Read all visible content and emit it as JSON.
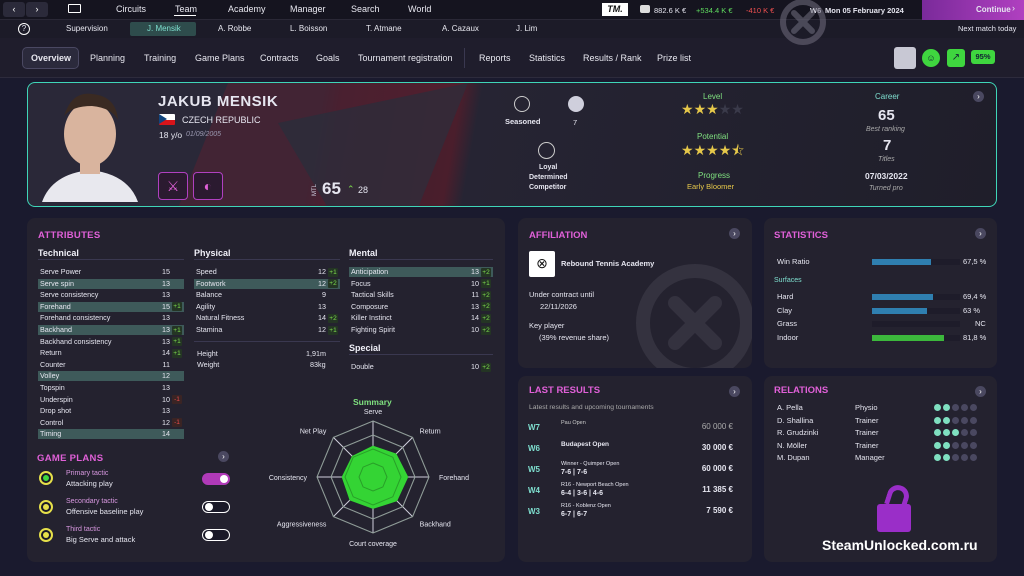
{
  "topbar": {
    "nav": [
      "Circuits",
      "Team",
      "Academy",
      "Manager",
      "Search",
      "World"
    ],
    "logo": "TM.",
    "money": "882.6 K €",
    "money_pos": "+534.4 K €",
    "money_neg": "-410 K €",
    "week": "W6",
    "date": "Mon 05 February 2024",
    "continue_label": "Continue",
    "next_match": "Next match today"
  },
  "subbar": {
    "items": [
      "Supervision",
      "J. Mensik",
      "A. Robbe",
      "L. Boisson",
      "T. Atmane",
      "A. Cazaux",
      "J. Lim"
    ]
  },
  "tabs": [
    "Overview",
    "Planning",
    "Training",
    "Game Plans",
    "Contracts",
    "Goals",
    "Tournament registration",
    "Reports",
    "Statistics",
    "Results / Rank",
    "Prize list"
  ],
  "header": {
    "fitness": "95%"
  },
  "profile": {
    "name": "JAKUB MENSIK",
    "country": "CZECH REPUBLIC",
    "age": "18 y/o",
    "dob": "01/09/2005",
    "mtl_label": "MTL",
    "mtl": "65",
    "mtl_gain": "28",
    "seasoned": "Seasoned",
    "seasoned_count": "7",
    "traits": [
      "Loyal",
      "Determined",
      "Competitor"
    ],
    "level_label": "Level",
    "potential_label": "Potential",
    "progress_label": "Progress",
    "progress_value": "Early Bloomer",
    "level_stars": 3,
    "potential_stars": 4.5,
    "career_label": "Career",
    "best_rank": "65",
    "best_rank_label": "Best ranking",
    "titles": "7",
    "titles_label": "Titles",
    "turned_pro": "07/03/2022",
    "turned_pro_label": "Turned pro"
  },
  "attributes": {
    "title": "ATTRIBUTES",
    "technical_label": "Technical",
    "physical_label": "Physical",
    "mental_label": "Mental",
    "special_label": "Special",
    "technical": [
      {
        "n": "Serve Power",
        "v": "15",
        "d": ""
      },
      {
        "n": "Serve spin",
        "v": "13",
        "d": ""
      },
      {
        "n": "Serve consistency",
        "v": "13",
        "d": ""
      },
      {
        "n": "Forehand",
        "v": "15",
        "d": "+1"
      },
      {
        "n": "Forehand consistency",
        "v": "13",
        "d": ""
      },
      {
        "n": "Backhand",
        "v": "13",
        "d": "+1"
      },
      {
        "n": "Backhand consistency",
        "v": "13",
        "d": "+1"
      },
      {
        "n": "Return",
        "v": "14",
        "d": "+1"
      },
      {
        "n": "Counter",
        "v": "11",
        "d": ""
      },
      {
        "n": "Volley",
        "v": "12",
        "d": ""
      },
      {
        "n": "Topspin",
        "v": "13",
        "d": ""
      },
      {
        "n": "Underspin",
        "v": "10",
        "d": "-1"
      },
      {
        "n": "Drop shot",
        "v": "13",
        "d": ""
      },
      {
        "n": "Control",
        "v": "12",
        "d": "-1"
      },
      {
        "n": "Timing",
        "v": "14",
        "d": ""
      }
    ],
    "physical": [
      {
        "n": "Speed",
        "v": "12",
        "d": "+1"
      },
      {
        "n": "Footwork",
        "v": "12",
        "d": "+2"
      },
      {
        "n": "Balance",
        "v": "9",
        "d": ""
      },
      {
        "n": "Agility",
        "v": "13",
        "d": ""
      },
      {
        "n": "Natural Fitness",
        "v": "14",
        "d": "+2"
      },
      {
        "n": "Stamina",
        "v": "12",
        "d": "+1"
      }
    ],
    "height_label": "Height",
    "height": "1,91m",
    "weight_label": "Weight",
    "weight": "83kg",
    "mental": [
      {
        "n": "Anticipation",
        "v": "13",
        "d": "+2"
      },
      {
        "n": "Focus",
        "v": "10",
        "d": "+1"
      },
      {
        "n": "Tactical Skills",
        "v": "11",
        "d": "+2"
      },
      {
        "n": "Composure",
        "v": "13",
        "d": "+2"
      },
      {
        "n": "Killer Instinct",
        "v": "14",
        "d": "+2"
      },
      {
        "n": "Fighting Spirit",
        "v": "10",
        "d": "+2"
      }
    ],
    "special": [
      {
        "n": "Double",
        "v": "10",
        "d": "+2"
      }
    ],
    "summary_title": "Summary",
    "radar_labels": [
      "Serve",
      "Return",
      "Forehand",
      "Backhand",
      "Court coverage",
      "Aggressiveness",
      "Consistency",
      "Net Play"
    ],
    "radar_values": [
      0.55,
      0.58,
      0.62,
      0.6,
      0.56,
      0.58,
      0.55,
      0.52
    ]
  },
  "game_plans": {
    "title": "GAME PLANS",
    "items": [
      {
        "tag": "Primary tactic",
        "name": "Attacking play",
        "on": true
      },
      {
        "tag": "Secondary tactic",
        "name": "Offensive baseline play",
        "on": false
      },
      {
        "tag": "Third tactic",
        "name": "Big Serve and attack",
        "on": false
      }
    ]
  },
  "affiliation": {
    "title": "AFFILIATION",
    "academy": "Rebound Tennis Academy",
    "contract_label": "Under contract until",
    "contract_date": "22/11/2026",
    "key_label": "Key player",
    "key_share": "(39% revenue share)"
  },
  "statistics": {
    "title": "STATISTICS",
    "win_label": "Win Ratio",
    "win_value": "67,5 %",
    "win_frac": 0.675,
    "surfaces_label": "Surfaces",
    "surfaces": [
      {
        "n": "Hard",
        "v": "69,4 %",
        "f": 0.694
      },
      {
        "n": "Clay",
        "v": "63 %",
        "f": 0.63
      },
      {
        "n": "Grass",
        "v": "NC",
        "f": 0
      },
      {
        "n": "Indoor",
        "v": "81,8 %",
        "f": 0.818
      }
    ]
  },
  "results": {
    "title": "LAST RESULTS",
    "subtitle": "Latest results and upcoming tournaments",
    "rows": [
      {
        "w": "W7",
        "t": "Pau Open",
        "s": "",
        "p": "60 000 €"
      },
      {
        "w": "W6",
        "t": "Budapest Open",
        "s": "",
        "p": "30 000 €"
      },
      {
        "w": "W5",
        "t": "Winner - Quimper Open",
        "s": "7-6 | 7-6",
        "p": "60 000 €"
      },
      {
        "w": "W4",
        "t": "R16 - Newport Beach Open",
        "s": "6-4 | 3-6 | 4-6",
        "p": "11 385 €"
      },
      {
        "w": "W3",
        "t": "R16 - Koblenz Open",
        "s": "6-7 | 6-7",
        "p": "7 590 €"
      }
    ]
  },
  "relations": {
    "title": "RELATIONS",
    "rows": [
      {
        "n": "A. Pella",
        "r": "Physio"
      },
      {
        "n": "D. Shallina",
        "r": "Trainer"
      },
      {
        "n": "R. Grudzinki",
        "r": "Trainer"
      },
      {
        "n": "N. Möller",
        "r": "Trainer"
      },
      {
        "n": "M. Dupan",
        "r": "Manager"
      }
    ]
  },
  "watermark": "SteamUnlocked.com.ru",
  "colors": {
    "accent": "#e060d8",
    "green": "#3fd63f",
    "lime": "#7ddc4d",
    "bar_blue": "#2f7fb0",
    "bar_green": "#3cb83c"
  }
}
